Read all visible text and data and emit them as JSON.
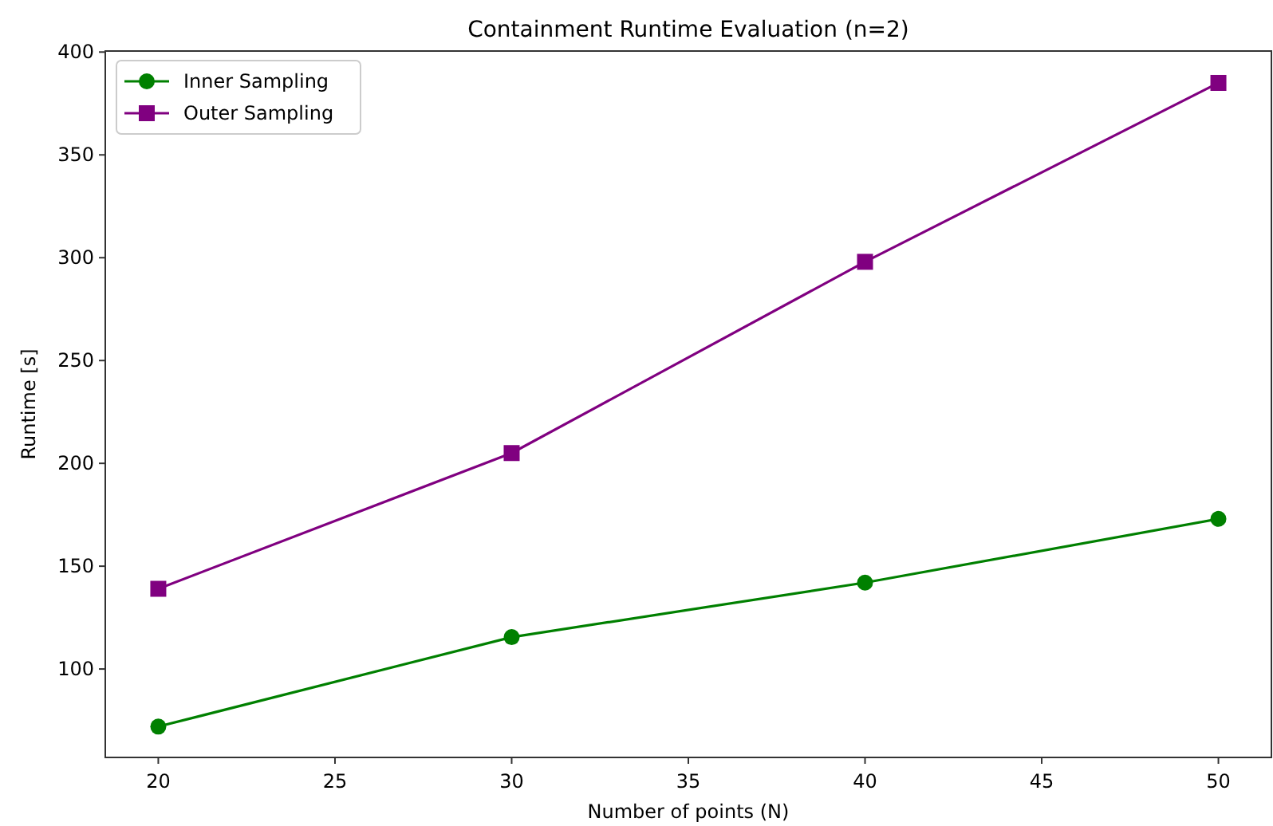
{
  "chart_data": {
    "type": "line",
    "title": "Containment Runtime Evaluation (n=2)",
    "xlabel": "Number of points (N)",
    "ylabel": "Runtime [s]",
    "x": [
      20,
      30,
      40,
      50
    ],
    "series": [
      {
        "name": "Inner Sampling",
        "color": "#008000",
        "marker": "circle",
        "values": [
          72,
          115.5,
          142,
          173
        ]
      },
      {
        "name": "Outer Sampling",
        "color": "#800080",
        "marker": "square",
        "values": [
          139,
          205,
          298,
          385
        ]
      }
    ],
    "xlim": [
      18.5,
      51.5
    ],
    "ylim": [
      57,
      400.5
    ],
    "xticks": [
      20,
      25,
      30,
      35,
      40,
      45,
      50
    ],
    "yticks": [
      100,
      150,
      200,
      250,
      300,
      350,
      400
    ],
    "legend": "top left",
    "grid": false,
    "line_style": "solid"
  }
}
